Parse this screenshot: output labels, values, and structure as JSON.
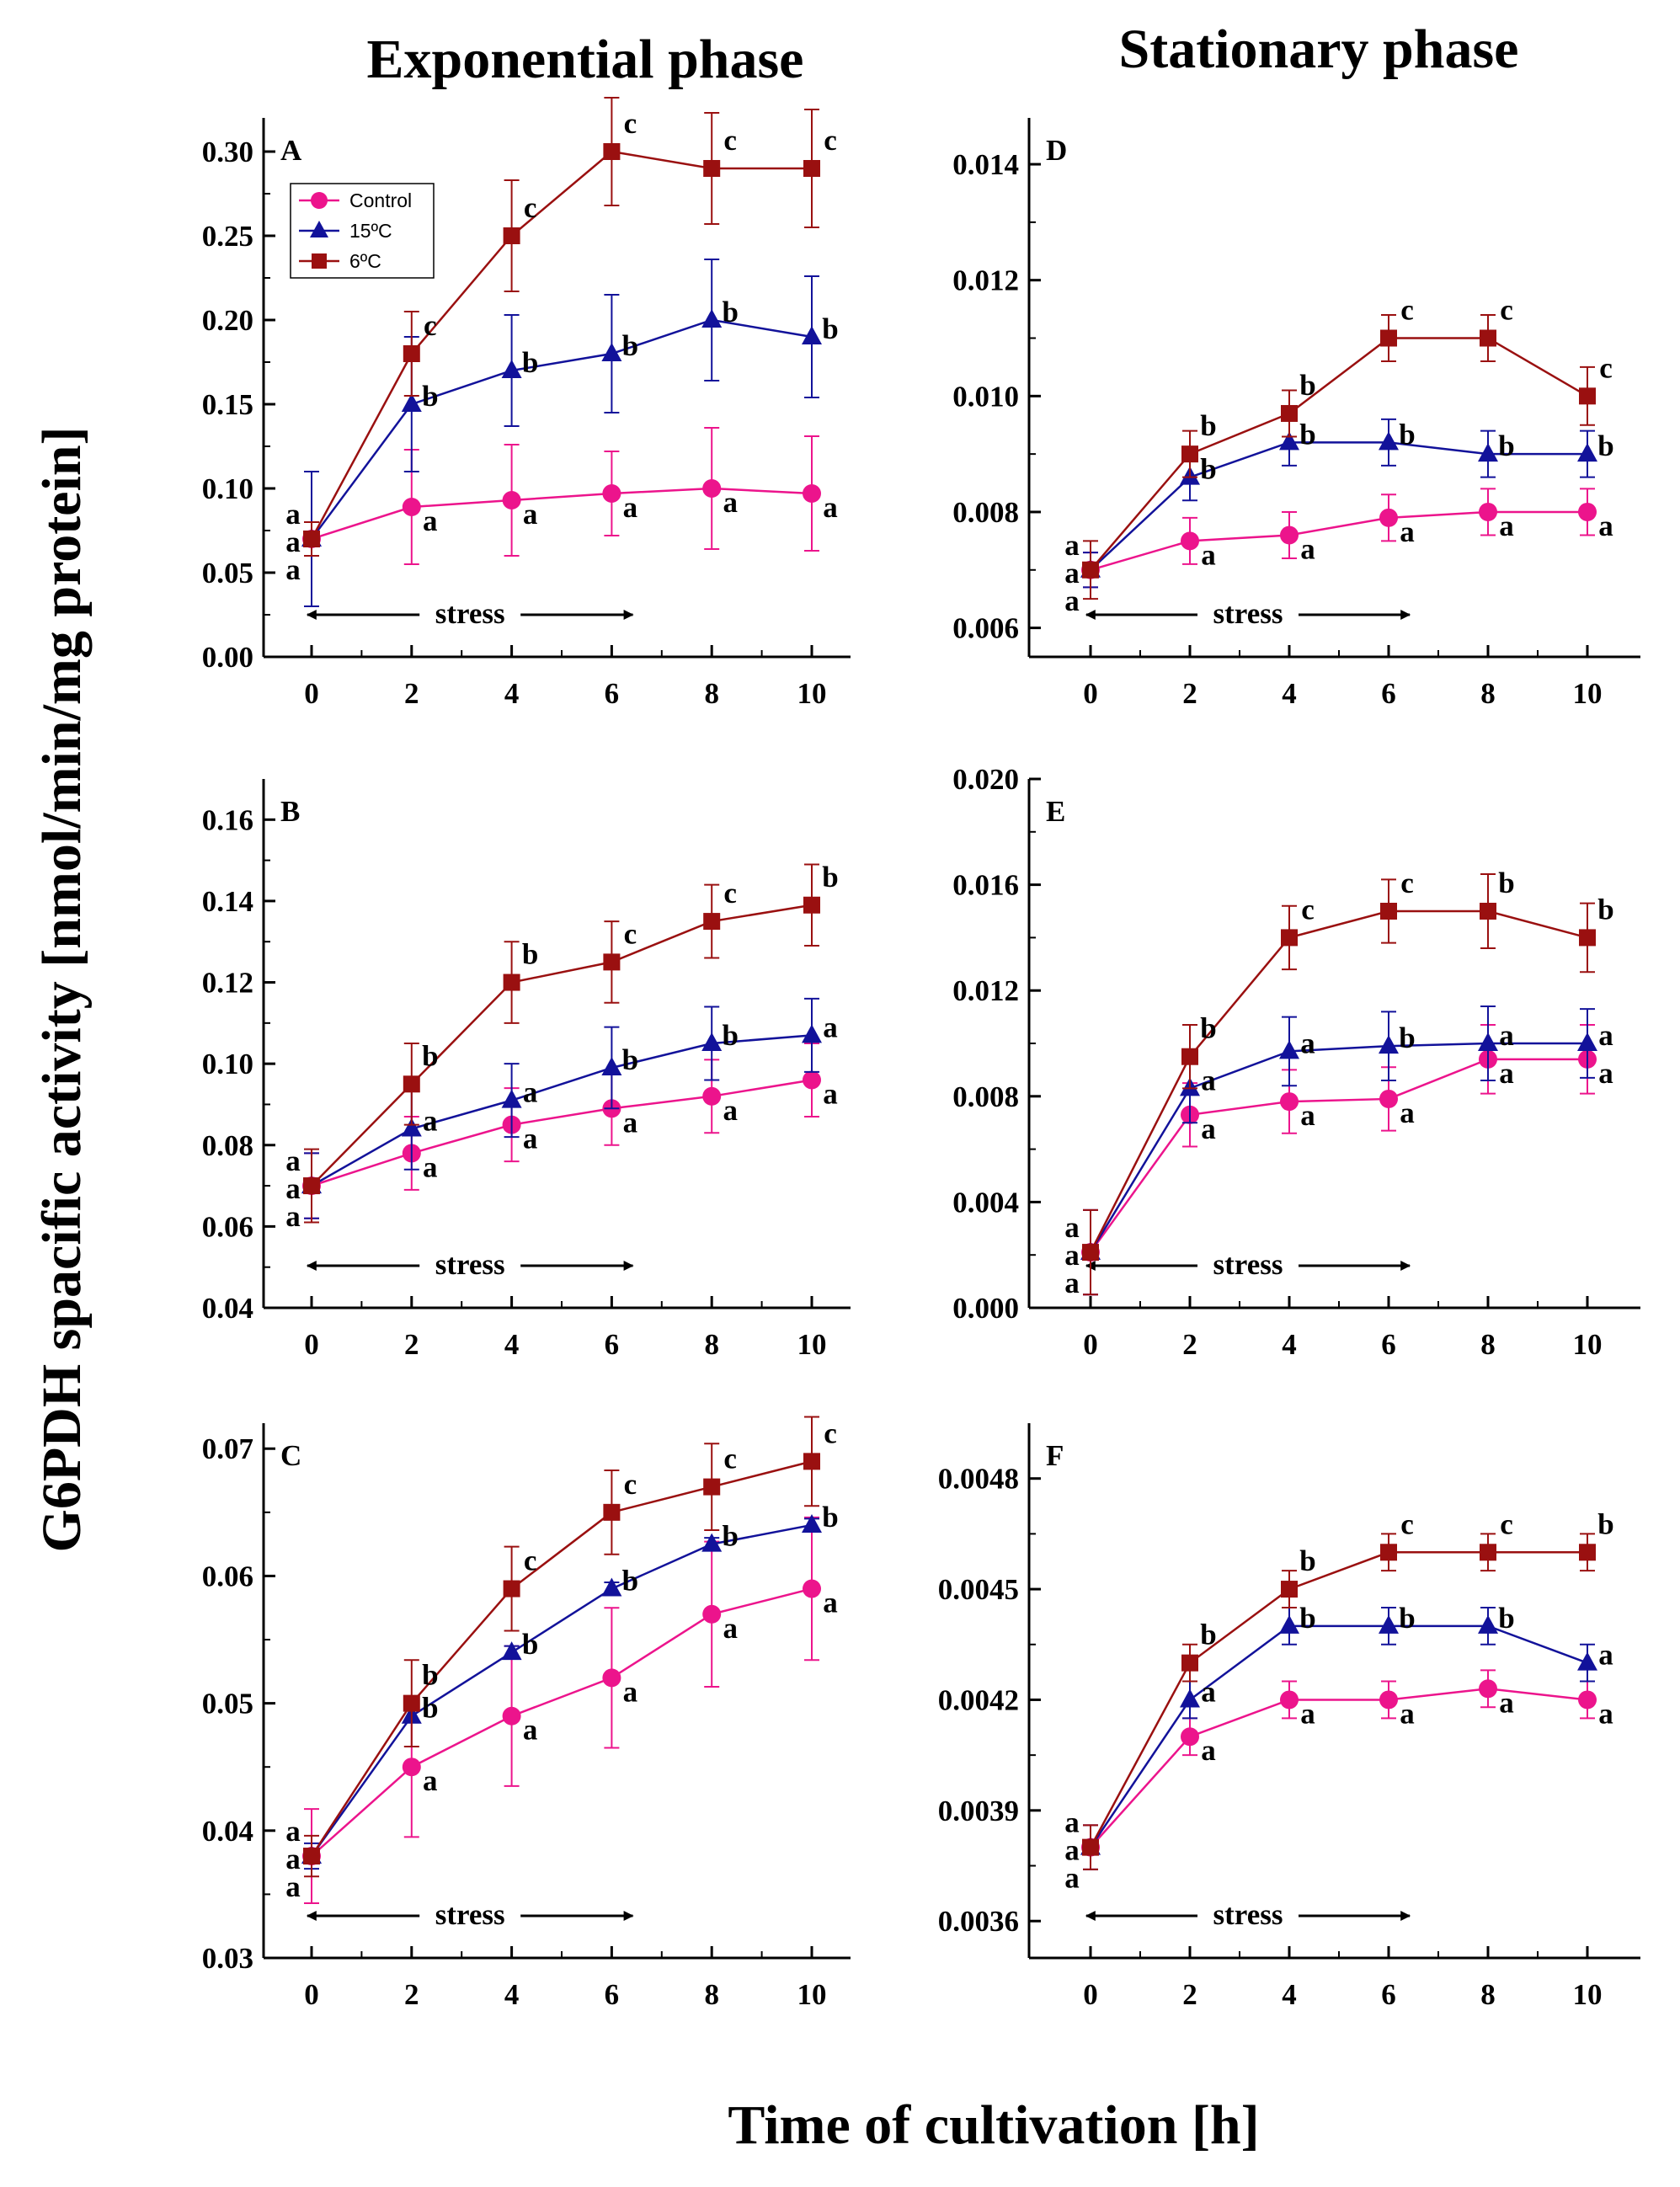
{
  "figure": {
    "column_titles": [
      "Exponential phase",
      "Stationary phase"
    ],
    "y_label": "G6PDH spacific activity [nmol/min/mg protein]",
    "x_label": "Time of cultivation [h]",
    "colors": {
      "Control": "#ec148c",
      "15ºC": "#12129a",
      "6ºC": "#9a1010"
    }
  },
  "chart_data": [
    {
      "panel": "A",
      "type": "line",
      "ylim": [
        0.0,
        0.32
      ],
      "yticks": [
        "0.00",
        "0.05",
        "0.10",
        "0.15",
        "0.20",
        "0.25",
        "0.30"
      ],
      "xticks": [
        "0",
        "2",
        "4",
        "6",
        "8",
        "10"
      ],
      "x": [
        0,
        2,
        4,
        6,
        8,
        10
      ],
      "stress_label": "stress",
      "stress_range": [
        0,
        6
      ],
      "legend": [
        "Control",
        "15ºC",
        "6ºC"
      ],
      "legend_position": "top-left",
      "series": [
        {
          "name": "Control",
          "marker": "circle",
          "values": [
            0.07,
            0.089,
            0.093,
            0.097,
            0.1,
            0.097
          ],
          "err": [
            0.04,
            0.034,
            0.033,
            0.025,
            0.036,
            0.034
          ],
          "letters": [
            "a",
            "a",
            "a",
            "a",
            "a",
            "a"
          ]
        },
        {
          "name": "15ºC",
          "marker": "triangle",
          "values": [
            0.07,
            0.15,
            0.17,
            0.18,
            0.2,
            0.19
          ],
          "err": [
            0.04,
            0.04,
            0.033,
            0.035,
            0.036,
            0.036
          ],
          "letters": [
            "a",
            "b",
            "b",
            "b",
            "b",
            "b"
          ]
        },
        {
          "name": "6ºC",
          "marker": "square",
          "values": [
            0.07,
            0.18,
            0.25,
            0.3,
            0.29,
            0.29
          ],
          "err": [
            0.01,
            0.025,
            0.033,
            0.032,
            0.033,
            0.035
          ],
          "letters": [
            "a",
            "c",
            "c",
            "c",
            "c",
            "c"
          ]
        }
      ]
    },
    {
      "panel": "B",
      "type": "line",
      "ylim": [
        0.04,
        0.17
      ],
      "yticks": [
        "0.04",
        "0.06",
        "0.08",
        "0.10",
        "0.12",
        "0.14",
        "0.16"
      ],
      "xticks": [
        "0",
        "2",
        "4",
        "6",
        "8",
        "10"
      ],
      "x": [
        0,
        2,
        4,
        6,
        8,
        10
      ],
      "stress_label": "stress",
      "stress_range": [
        0,
        6
      ],
      "series": [
        {
          "name": "Control",
          "marker": "circle",
          "values": [
            0.07,
            0.078,
            0.085,
            0.089,
            0.092,
            0.096
          ],
          "err": [
            0.008,
            0.009,
            0.009,
            0.009,
            0.009,
            0.009
          ],
          "letters": [
            "a",
            "a",
            "a",
            "a",
            "a",
            "a"
          ]
        },
        {
          "name": "15ºC",
          "marker": "triangle",
          "values": [
            0.07,
            0.084,
            0.091,
            0.099,
            0.105,
            0.107
          ],
          "err": [
            0.008,
            0.01,
            0.009,
            0.01,
            0.009,
            0.009
          ],
          "letters": [
            "a",
            "a",
            "a",
            "b",
            "b",
            "a"
          ]
        },
        {
          "name": "6ºC",
          "marker": "square",
          "values": [
            0.07,
            0.095,
            0.12,
            0.125,
            0.135,
            0.139
          ],
          "err": [
            0.009,
            0.01,
            0.01,
            0.01,
            0.009,
            0.01
          ],
          "letters": [
            "a",
            "b",
            "b",
            "c",
            "c",
            "b"
          ]
        }
      ]
    },
    {
      "panel": "C",
      "type": "line",
      "ylim": [
        0.03,
        0.072
      ],
      "yticks": [
        "0.03",
        "0.04",
        "0.05",
        "0.06",
        "0.07"
      ],
      "xticks": [
        "0",
        "2",
        "4",
        "6",
        "8",
        "10"
      ],
      "x": [
        0,
        2,
        4,
        6,
        8,
        10
      ],
      "stress_label": "stress",
      "stress_range": [
        0,
        6
      ],
      "series": [
        {
          "name": "Control",
          "marker": "circle",
          "values": [
            0.038,
            0.045,
            0.049,
            0.052,
            0.057,
            0.059
          ],
          "err": [
            0.0037,
            0.0055,
            0.0055,
            0.0055,
            0.0057,
            0.0056
          ],
          "letters": [
            "a",
            "a",
            "a",
            "a",
            "a",
            "a"
          ]
        },
        {
          "name": "15ºC",
          "marker": "triangle",
          "values": [
            0.038,
            0.049,
            0.054,
            0.059,
            0.0625,
            0.064
          ],
          "err": [
            0.001,
            0.0005,
            0.0005,
            0.0005,
            0.0005,
            0.0005
          ],
          "letters": [
            "a",
            "b",
            "b",
            "b",
            "b",
            "b"
          ]
        },
        {
          "name": "6ºC",
          "marker": "square",
          "values": [
            0.038,
            0.05,
            0.059,
            0.065,
            0.067,
            0.069
          ],
          "err": [
            0.0016,
            0.0034,
            0.0033,
            0.0033,
            0.0034,
            0.0035
          ],
          "letters": [
            "a",
            "b",
            "c",
            "c",
            "c",
            "c"
          ]
        }
      ]
    },
    {
      "panel": "D",
      "type": "line",
      "ylim": [
        0.0055,
        0.0148
      ],
      "yticks": [
        "0.006",
        "0.008",
        "0.010",
        "0.012",
        "0.014"
      ],
      "xticks": [
        "0",
        "2",
        "4",
        "6",
        "8",
        "10"
      ],
      "x": [
        0,
        2,
        4,
        6,
        8,
        10
      ],
      "stress_label": "stress",
      "stress_range": [
        0,
        6
      ],
      "series": [
        {
          "name": "Control",
          "marker": "circle",
          "values": [
            0.007,
            0.0075,
            0.0076,
            0.0079,
            0.008,
            0.008
          ],
          "err": [
            0.0003,
            0.0004,
            0.0004,
            0.0004,
            0.0004,
            0.0004
          ],
          "letters": [
            "a",
            "a",
            "a",
            "a",
            "a",
            "a"
          ]
        },
        {
          "name": "15ºC",
          "marker": "triangle",
          "values": [
            0.007,
            0.0086,
            0.0092,
            0.0092,
            0.009,
            0.009
          ],
          "err": [
            0.0003,
            0.0004,
            0.0004,
            0.0004,
            0.0004,
            0.0004
          ],
          "letters": [
            "a",
            "b",
            "b",
            "b",
            "b",
            "b"
          ]
        },
        {
          "name": "6ºC",
          "marker": "square",
          "values": [
            0.007,
            0.009,
            0.0097,
            0.011,
            0.011,
            0.01
          ],
          "err": [
            0.0005,
            0.0004,
            0.0004,
            0.0004,
            0.0004,
            0.0005
          ],
          "letters": [
            "a",
            "b",
            "b",
            "c",
            "c",
            "c"
          ]
        }
      ]
    },
    {
      "panel": "E",
      "type": "line",
      "ylim": [
        0.0,
        0.02
      ],
      "yticks": [
        "0.000",
        "0.004",
        "0.008",
        "0.012",
        "0.016",
        "0.020"
      ],
      "xticks": [
        "0",
        "2",
        "4",
        "6",
        "8",
        "10"
      ],
      "x": [
        0,
        2,
        4,
        6,
        8,
        10
      ],
      "stress_label": "stress",
      "stress_range": [
        0,
        6
      ],
      "series": [
        {
          "name": "Control",
          "marker": "circle",
          "values": [
            0.0021,
            0.0073,
            0.0078,
            0.0079,
            0.0094,
            0.0094
          ],
          "err": [
            0.0016,
            0.0012,
            0.0012,
            0.0012,
            0.0013,
            0.0013
          ],
          "letters": [
            "a",
            "a",
            "a",
            "a",
            "a",
            "a"
          ]
        },
        {
          "name": "15ºC",
          "marker": "triangle",
          "values": [
            0.0021,
            0.0083,
            0.0097,
            0.0099,
            0.01,
            0.01
          ],
          "err": [
            0.0016,
            0.0013,
            0.0013,
            0.0013,
            0.0014,
            0.0013
          ],
          "letters": [
            "a",
            "a",
            "a",
            "b",
            "a",
            "a"
          ]
        },
        {
          "name": "6ºC",
          "marker": "square",
          "values": [
            0.0021,
            0.0095,
            0.014,
            0.015,
            0.015,
            0.014
          ],
          "err": [
            0.0016,
            0.0012,
            0.0012,
            0.0012,
            0.0014,
            0.0013
          ],
          "letters": [
            "a",
            "b",
            "c",
            "c",
            "b",
            "b"
          ]
        }
      ]
    },
    {
      "panel": "F",
      "type": "line",
      "ylim": [
        0.0035,
        0.00495
      ],
      "yticks": [
        "0.0036",
        "0.0039",
        "0.0042",
        "0.0045",
        "0.0048"
      ],
      "xticks": [
        "0",
        "2",
        "4",
        "6",
        "8",
        "10"
      ],
      "x": [
        0,
        2,
        4,
        6,
        8,
        10
      ],
      "stress_label": "stress",
      "stress_range": [
        0,
        6
      ],
      "series": [
        {
          "name": "Control",
          "marker": "circle",
          "values": [
            0.0038,
            0.0041,
            0.0042,
            0.0042,
            0.00423,
            0.0042
          ],
          "err": [
            6e-05,
            5e-05,
            5e-05,
            5e-05,
            5e-05,
            5e-05
          ],
          "letters": [
            "a",
            "a",
            "a",
            "a",
            "a",
            "a"
          ]
        },
        {
          "name": "15ºC",
          "marker": "triangle",
          "values": [
            0.0038,
            0.0042,
            0.0044,
            0.0044,
            0.0044,
            0.0043
          ],
          "err": [
            6e-05,
            5e-05,
            5e-05,
            5e-05,
            5e-05,
            5e-05
          ],
          "letters": [
            "a",
            "a",
            "b",
            "b",
            "b",
            "a"
          ]
        },
        {
          "name": "6ºC",
          "marker": "square",
          "values": [
            0.0038,
            0.0043,
            0.0045,
            0.0046,
            0.0046,
            0.0046
          ],
          "err": [
            6e-05,
            5e-05,
            5e-05,
            5e-05,
            5e-05,
            5e-05
          ],
          "letters": [
            "a",
            "b",
            "b",
            "c",
            "c",
            "b"
          ]
        }
      ]
    }
  ]
}
